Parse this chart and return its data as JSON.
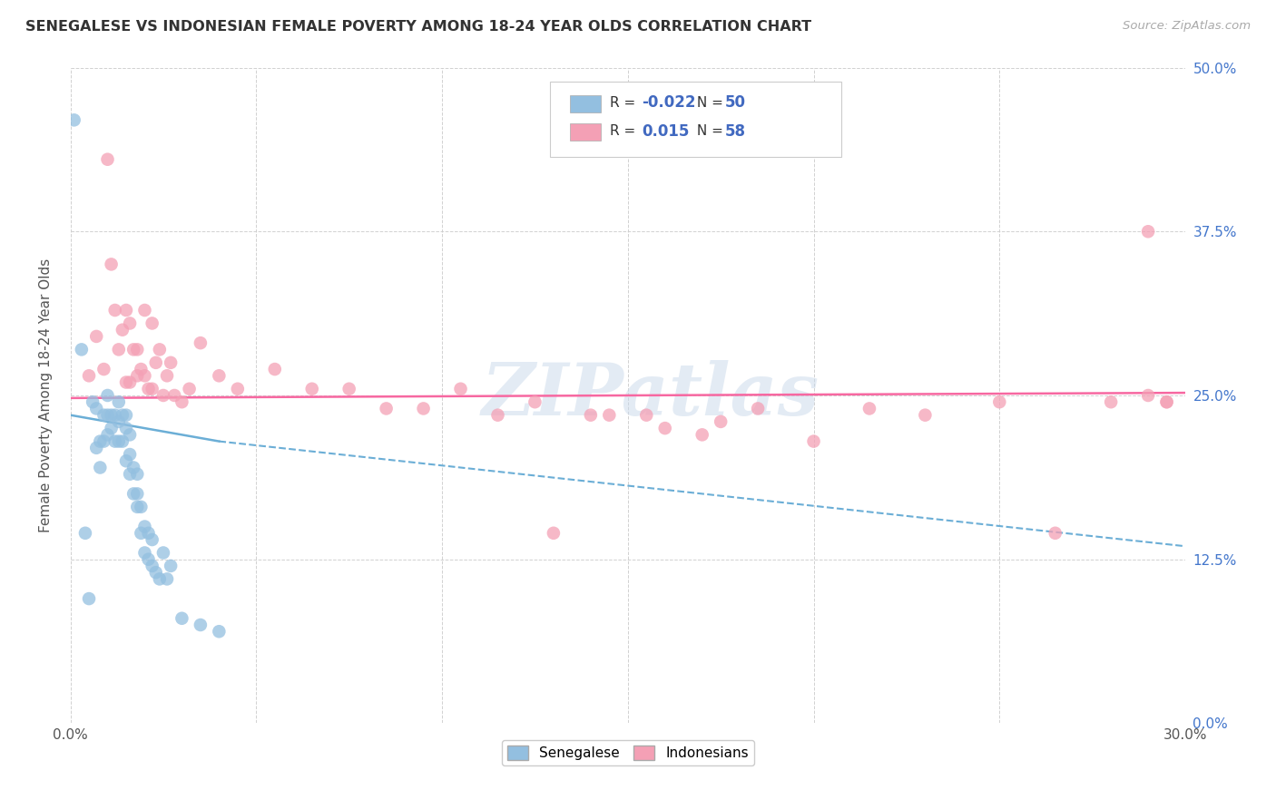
{
  "title": "SENEGALESE VS INDONESIAN FEMALE POVERTY AMONG 18-24 YEAR OLDS CORRELATION CHART",
  "source": "Source: ZipAtlas.com",
  "ylabel": "Female Poverty Among 18-24 Year Olds",
  "xlim": [
    0.0,
    0.3
  ],
  "ylim": [
    0.0,
    0.5
  ],
  "background_color": "#ffffff",
  "grid_color": "#cccccc",
  "senegalese_color": "#93bfe0",
  "indonesian_color": "#f4a0b5",
  "senegalese_line_color": "#6baed6",
  "indonesian_line_color": "#f768a1",
  "legend_color": "#4169c0",
  "senegalese_R": "-0.022",
  "senegalese_N": "50",
  "indonesian_R": "0.015",
  "indonesian_N": "58",
  "watermark": "ZIPatlas",
  "senegalese_x": [
    0.001,
    0.003,
    0.004,
    0.005,
    0.006,
    0.007,
    0.007,
    0.008,
    0.008,
    0.009,
    0.009,
    0.01,
    0.01,
    0.01,
    0.011,
    0.011,
    0.012,
    0.012,
    0.013,
    0.013,
    0.013,
    0.014,
    0.014,
    0.015,
    0.015,
    0.015,
    0.016,
    0.016,
    0.016,
    0.017,
    0.017,
    0.018,
    0.018,
    0.018,
    0.019,
    0.019,
    0.02,
    0.02,
    0.021,
    0.021,
    0.022,
    0.022,
    0.023,
    0.024,
    0.025,
    0.026,
    0.027,
    0.03,
    0.035,
    0.04
  ],
  "senegalese_y": [
    0.46,
    0.285,
    0.145,
    0.095,
    0.245,
    0.24,
    0.21,
    0.215,
    0.195,
    0.235,
    0.215,
    0.25,
    0.235,
    0.22,
    0.235,
    0.225,
    0.235,
    0.215,
    0.245,
    0.23,
    0.215,
    0.235,
    0.215,
    0.235,
    0.225,
    0.2,
    0.22,
    0.205,
    0.19,
    0.195,
    0.175,
    0.19,
    0.175,
    0.165,
    0.165,
    0.145,
    0.15,
    0.13,
    0.145,
    0.125,
    0.14,
    0.12,
    0.115,
    0.11,
    0.13,
    0.11,
    0.12,
    0.08,
    0.075,
    0.07
  ],
  "indonesian_x": [
    0.005,
    0.007,
    0.009,
    0.01,
    0.011,
    0.012,
    0.013,
    0.014,
    0.015,
    0.015,
    0.016,
    0.016,
    0.017,
    0.018,
    0.018,
    0.019,
    0.02,
    0.02,
    0.021,
    0.022,
    0.022,
    0.023,
    0.024,
    0.025,
    0.026,
    0.027,
    0.028,
    0.03,
    0.032,
    0.035,
    0.04,
    0.045,
    0.055,
    0.065,
    0.075,
    0.085,
    0.095,
    0.105,
    0.115,
    0.125,
    0.14,
    0.155,
    0.17,
    0.185,
    0.2,
    0.215,
    0.23,
    0.25,
    0.265,
    0.28,
    0.29,
    0.29,
    0.295,
    0.295,
    0.13,
    0.145,
    0.16,
    0.175
  ],
  "indonesian_y": [
    0.265,
    0.295,
    0.27,
    0.43,
    0.35,
    0.315,
    0.285,
    0.3,
    0.26,
    0.315,
    0.26,
    0.305,
    0.285,
    0.285,
    0.265,
    0.27,
    0.265,
    0.315,
    0.255,
    0.255,
    0.305,
    0.275,
    0.285,
    0.25,
    0.265,
    0.275,
    0.25,
    0.245,
    0.255,
    0.29,
    0.265,
    0.255,
    0.27,
    0.255,
    0.255,
    0.24,
    0.24,
    0.255,
    0.235,
    0.245,
    0.235,
    0.235,
    0.22,
    0.24,
    0.215,
    0.24,
    0.235,
    0.245,
    0.145,
    0.245,
    0.25,
    0.375,
    0.245,
    0.245,
    0.145,
    0.235,
    0.225,
    0.23
  ],
  "trend_sene_x0": 0.0,
  "trend_sene_y0": 0.235,
  "trend_sene_x1": 0.04,
  "trend_sene_y1": 0.215,
  "trend_sene_dash_x0": 0.04,
  "trend_sene_dash_y0": 0.215,
  "trend_sene_dash_x1": 0.3,
  "trend_sene_dash_y1": 0.135,
  "trend_indo_x0": 0.0,
  "trend_indo_y0": 0.248,
  "trend_indo_x1": 0.3,
  "trend_indo_y1": 0.252
}
